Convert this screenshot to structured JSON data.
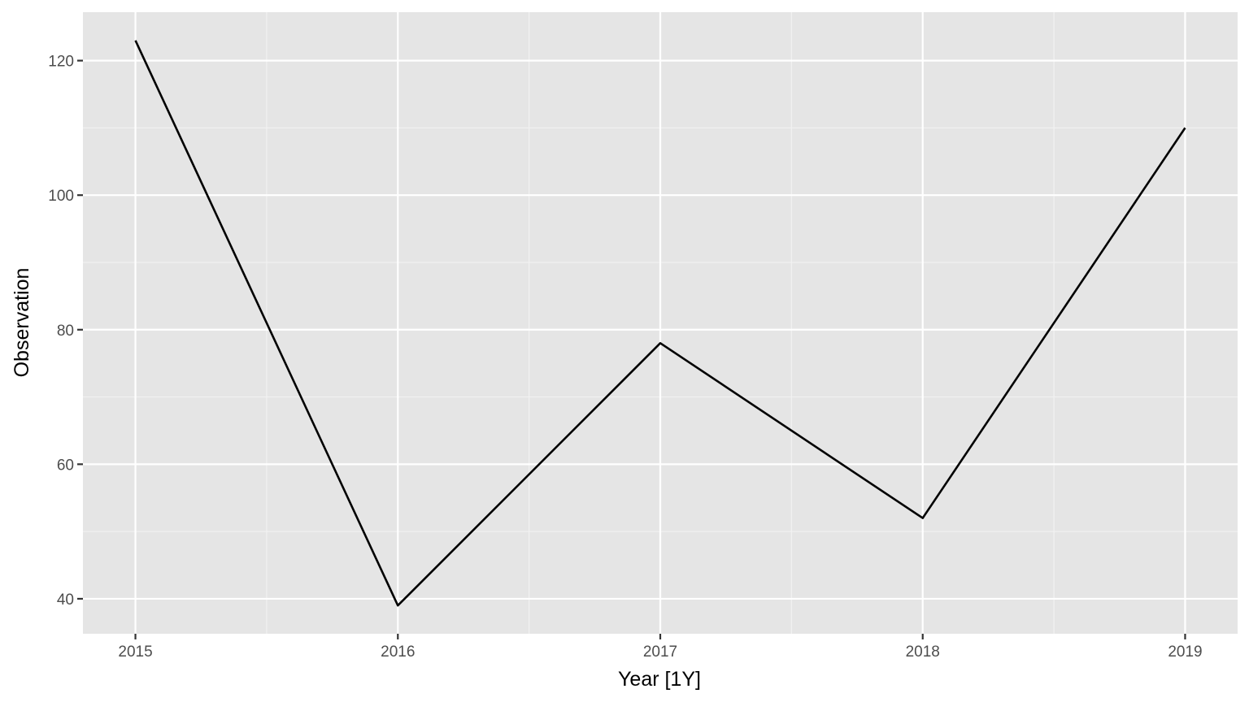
{
  "chart_data": {
    "type": "line",
    "title": "",
    "xlabel": "Year [1Y]",
    "ylabel": "Observation",
    "x": [
      2015,
      2016,
      2017,
      2018,
      2019
    ],
    "series": [
      {
        "values": [
          123,
          39,
          78,
          52,
          110
        ]
      }
    ],
    "x_ticks": [
      "2015",
      "2016",
      "2017",
      "2018",
      "2019"
    ],
    "y_ticks": [
      40,
      60,
      80,
      100,
      120
    ],
    "xlim": [
      2014.8,
      2019.2
    ],
    "ylim": [
      34.8,
      127.2
    ],
    "grid": true,
    "legend": "none",
    "colors": {
      "panel_background": "#e5e5e5",
      "major_grid": "#ffffff",
      "minor_grid": "#f2f2f2",
      "line": "#000000",
      "tick_label": "#4d4d4d",
      "axis_title": "#000000"
    }
  }
}
